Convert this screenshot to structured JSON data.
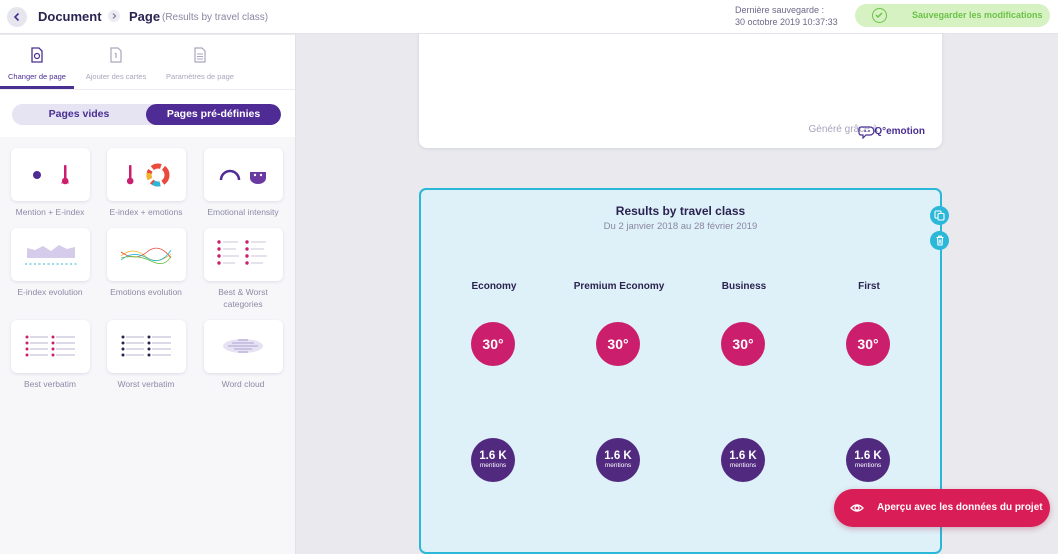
{
  "header": {
    "document_label": "Document",
    "page_label": "Page",
    "page_subtitle": "(Results by travel class)",
    "last_saved_label": "Dernière sauvegarde :",
    "last_saved_value": "30 octobre 2019 10:37:33",
    "save_button": "Sauvegarder les modifications",
    "colors": {
      "accent": "#4f2b96",
      "save_bg": "#d6f2c2",
      "save_text": "#6cc24a"
    }
  },
  "sidebar": {
    "tabs": [
      {
        "label": "Changer de page",
        "icon": "page-change-icon",
        "active": true
      },
      {
        "label": "Ajouter des cartes",
        "icon": "add-card-icon",
        "active": false
      },
      {
        "label": "Paramètres de page",
        "icon": "page-settings-icon",
        "active": false
      }
    ],
    "segment": {
      "empty_pages": "Pages vides",
      "predefined_pages": "Pages pré-définies",
      "selected": "Pages pré-définies"
    },
    "templates": [
      {
        "name": "Mention + E-index"
      },
      {
        "name": "E-index + emotions"
      },
      {
        "name": "Emotional intensity"
      },
      {
        "name": "E-index evolution"
      },
      {
        "name": "Emotions evolution"
      },
      {
        "name": "Best & Worst categories"
      },
      {
        "name": "Best verbatim"
      },
      {
        "name": "Worst verbatim"
      },
      {
        "name": "Word cloud"
      }
    ]
  },
  "main": {
    "footer_generated": "Généré grâce à",
    "footer_brand": "Q°emotion",
    "results": {
      "title": "Results by travel class",
      "subtitle": "Du 2 janvier 2018 au 28 février 2019",
      "columns": [
        {
          "name": "Economy",
          "index": "30°",
          "mentions": "1.6 K",
          "mentions_unit": "mentions"
        },
        {
          "name": "Premium Economy",
          "index": "30°",
          "mentions": "1.6 K",
          "mentions_unit": "mentions"
        },
        {
          "name": "Business",
          "index": "30°",
          "mentions": "1.6 K",
          "mentions_unit": "mentions"
        },
        {
          "name": "First",
          "index": "30°",
          "mentions": "1.6 K",
          "mentions_unit": "mentions"
        }
      ],
      "colors": {
        "index_circle": "#cb1f6e",
        "mentions_circle": "#51297f",
        "border": "#2ab7d8"
      }
    },
    "preview_button": "Aperçu avec les données du projet"
  }
}
